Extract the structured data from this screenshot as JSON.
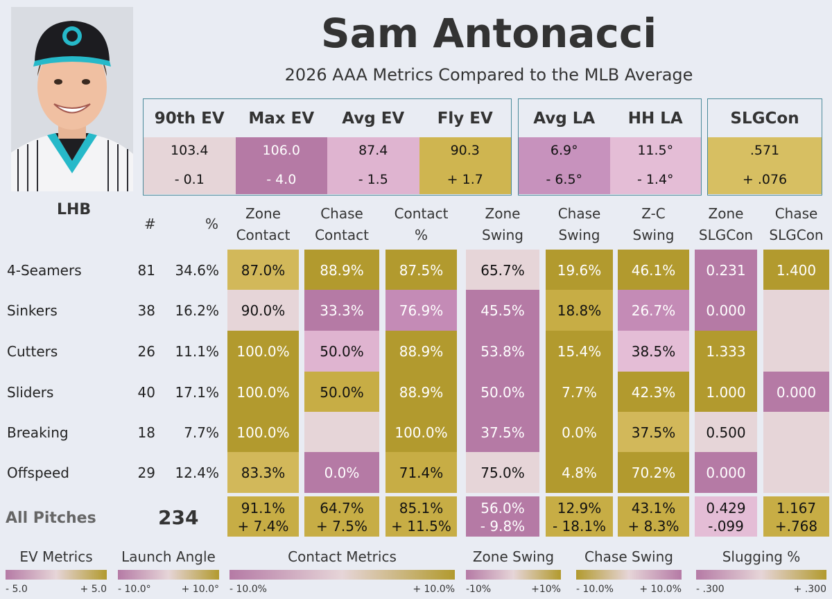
{
  "player": {
    "name": "Sam Antonacci",
    "subtitle": "2026 AAA Metrics Compared to the MLB Average",
    "hand": "LHB"
  },
  "ev_metrics": [
    {
      "label": "90th EV",
      "value": "103.4",
      "diff": "- 0.1",
      "color": "#e6d5d8",
      "light": false
    },
    {
      "label": "Max EV",
      "value": "106.0",
      "diff": "- 4.0",
      "color": "#b57aa5",
      "light": true
    },
    {
      "label": "Avg EV",
      "value": "87.4",
      "diff": "- 1.5",
      "color": "#dfb4d0",
      "light": false
    },
    {
      "label": "Fly EV",
      "value": "90.3",
      "diff": "+ 1.7",
      "color": "#cfb550",
      "light": false
    }
  ],
  "la_metrics": [
    {
      "label": "Avg LA",
      "value": "6.9°",
      "diff": "- 6.5°",
      "color": "#c792bd",
      "light": false
    },
    {
      "label": "HH LA",
      "value": "11.5°",
      "diff": "- 1.4°",
      "color": "#e4bdd6",
      "light": false
    }
  ],
  "slg_metric": {
    "label": "SLGCon",
    "value": ".571",
    "diff": "+ .076",
    "color": "#d7bf62",
    "light": false
  },
  "table": {
    "hash_label": "#",
    "pct_label": "%",
    "columns": [
      {
        "line1": "Zone",
        "line2": "Contact"
      },
      {
        "line1": "Chase",
        "line2": "Contact"
      },
      {
        "line1": "Contact",
        "line2": "%"
      },
      {
        "line1": "Zone",
        "line2": "Swing"
      },
      {
        "line1": "Chase",
        "line2": "Swing"
      },
      {
        "line1": "Z-C",
        "line2": "Swing"
      },
      {
        "line1": "Zone",
        "line2": "SLGCon"
      },
      {
        "line1": "Chase",
        "line2": "SLGCon"
      }
    ],
    "rows": [
      {
        "pitch": "4-Seamers",
        "count": "81",
        "pct": "34.6%",
        "cells": [
          {
            "v": "87.0%",
            "c": "#d2b85a",
            "l": false
          },
          {
            "v": "88.9%",
            "c": "#b29a2e",
            "l": true
          },
          {
            "v": "87.5%",
            "c": "#b29a2e",
            "l": true
          },
          {
            "v": "65.7%",
            "c": "#e6d5d8",
            "l": false
          },
          {
            "v": "19.6%",
            "c": "#b29a2e",
            "l": true
          },
          {
            "v": "46.1%",
            "c": "#b29a2e",
            "l": true
          },
          {
            "v": "0.231",
            "c": "#b57aa5",
            "l": true
          },
          {
            "v": "1.400",
            "c": "#b29a2e",
            "l": true
          }
        ]
      },
      {
        "pitch": "Sinkers",
        "count": "38",
        "pct": "16.2%",
        "cells": [
          {
            "v": "90.0%",
            "c": "#e6d5d8",
            "l": false
          },
          {
            "v": "33.3%",
            "c": "#b57aa5",
            "l": true
          },
          {
            "v": "76.9%",
            "c": "#c48bb6",
            "l": true
          },
          {
            "v": "45.5%",
            "c": "#b57aa5",
            "l": true
          },
          {
            "v": "18.8%",
            "c": "#c7ad45",
            "l": false
          },
          {
            "v": "26.7%",
            "c": "#c48bb6",
            "l": true
          },
          {
            "v": "0.000",
            "c": "#b57aa5",
            "l": true
          },
          {
            "v": "",
            "c": "#e6d5d8",
            "l": false
          }
        ]
      },
      {
        "pitch": "Cutters",
        "count": "26",
        "pct": "11.1%",
        "cells": [
          {
            "v": "100.0%",
            "c": "#b29a2e",
            "l": true
          },
          {
            "v": "50.0%",
            "c": "#dfb4d0",
            "l": false
          },
          {
            "v": "88.9%",
            "c": "#b29a2e",
            "l": true
          },
          {
            "v": "53.8%",
            "c": "#b57aa5",
            "l": true
          },
          {
            "v": "15.4%",
            "c": "#b29a2e",
            "l": true
          },
          {
            "v": "38.5%",
            "c": "#e4bdd6",
            "l": false
          },
          {
            "v": "1.333",
            "c": "#b29a2e",
            "l": true
          },
          {
            "v": "",
            "c": "#e6d5d8",
            "l": false
          }
        ]
      },
      {
        "pitch": "Sliders",
        "count": "40",
        "pct": "17.1%",
        "cells": [
          {
            "v": "100.0%",
            "c": "#b29a2e",
            "l": true
          },
          {
            "v": "50.0%",
            "c": "#c7ad45",
            "l": false
          },
          {
            "v": "88.9%",
            "c": "#b29a2e",
            "l": true
          },
          {
            "v": "50.0%",
            "c": "#b57aa5",
            "l": true
          },
          {
            "v": "7.7%",
            "c": "#b29a2e",
            "l": true
          },
          {
            "v": "42.3%",
            "c": "#b29a2e",
            "l": true
          },
          {
            "v": "1.000",
            "c": "#b29a2e",
            "l": true
          },
          {
            "v": "0.000",
            "c": "#b57aa5",
            "l": true
          }
        ]
      },
      {
        "pitch": "Breaking",
        "count": "18",
        "pct": "7.7%",
        "cells": [
          {
            "v": "100.0%",
            "c": "#b29a2e",
            "l": true
          },
          {
            "v": "",
            "c": "#e6d5d8",
            "l": false
          },
          {
            "v": "100.0%",
            "c": "#b29a2e",
            "l": true
          },
          {
            "v": "37.5%",
            "c": "#b57aa5",
            "l": true
          },
          {
            "v": "0.0%",
            "c": "#b29a2e",
            "l": true
          },
          {
            "v": "37.5%",
            "c": "#d2b85a",
            "l": false
          },
          {
            "v": "0.500",
            "c": "#e6d5d8",
            "l": false
          },
          {
            "v": "",
            "c": "#e6d5d8",
            "l": false
          }
        ]
      },
      {
        "pitch": "Offspeed",
        "count": "29",
        "pct": "12.4%",
        "cells": [
          {
            "v": "83.3%",
            "c": "#d2b85a",
            "l": false
          },
          {
            "v": "0.0%",
            "c": "#b57aa5",
            "l": true
          },
          {
            "v": "71.4%",
            "c": "#c7ad45",
            "l": false
          },
          {
            "v": "75.0%",
            "c": "#e6d5d8",
            "l": false
          },
          {
            "v": "4.8%",
            "c": "#b29a2e",
            "l": true
          },
          {
            "v": "70.2%",
            "c": "#b29a2e",
            "l": true
          },
          {
            "v": "0.000",
            "c": "#b57aa5",
            "l": true
          },
          {
            "v": "",
            "c": "#e6d5d8",
            "l": false
          }
        ]
      }
    ],
    "all": {
      "label": "All Pitches",
      "count": "234",
      "cells": [
        {
          "v1": "91.1%",
          "v2": "+ 7.4%",
          "c": "#c7ad45",
          "l": false
        },
        {
          "v1": "64.7%",
          "v2": "+ 7.5%",
          "c": "#c7ad45",
          "l": false
        },
        {
          "v1": "85.1%",
          "v2": "+ 11.5%",
          "c": "#c7ad45",
          "l": false
        },
        {
          "v1": "56.0%",
          "v2": "- 9.8%",
          "c": "#b57aa5",
          "l": true
        },
        {
          "v1": "12.9%",
          "v2": "- 18.1%",
          "c": "#c7ad45",
          "l": false
        },
        {
          "v1": "43.1%",
          "v2": "+ 8.3%",
          "c": "#c7ad45",
          "l": false
        },
        {
          "v1": "0.429",
          "v2": "-.099",
          "c": "#e4bdd6",
          "l": false
        },
        {
          "v1": "1.167",
          "v2": "+.768",
          "c": "#c7ad45",
          "l": false
        }
      ]
    }
  },
  "legends": [
    {
      "title": "EV Metrics",
      "min": "- 5.0",
      "max": "+ 5.0",
      "dir": "pg"
    },
    {
      "title": "Launch Angle",
      "min": "- 10.0°",
      "max": "+ 10.0°",
      "dir": "pg"
    },
    {
      "title": "Contact Metrics",
      "min": "- 10.0%",
      "max": "+ 10.0%",
      "dir": "pg"
    },
    {
      "title": "Zone Swing",
      "min": "-10%",
      "max": "+10%",
      "dir": "pg"
    },
    {
      "title": "Chase Swing",
      "min": "- 10.0%",
      "max": "+ 10.0%",
      "dir": "gp"
    },
    {
      "title": "Slugging %",
      "min": "- .300",
      "max": "+ .300",
      "dir": "pg"
    }
  ],
  "colors": {
    "purple": "#b57aa5",
    "gold": "#b29a2e",
    "neutral": "#e6d5d8",
    "box_border": "#4a8a9a"
  }
}
